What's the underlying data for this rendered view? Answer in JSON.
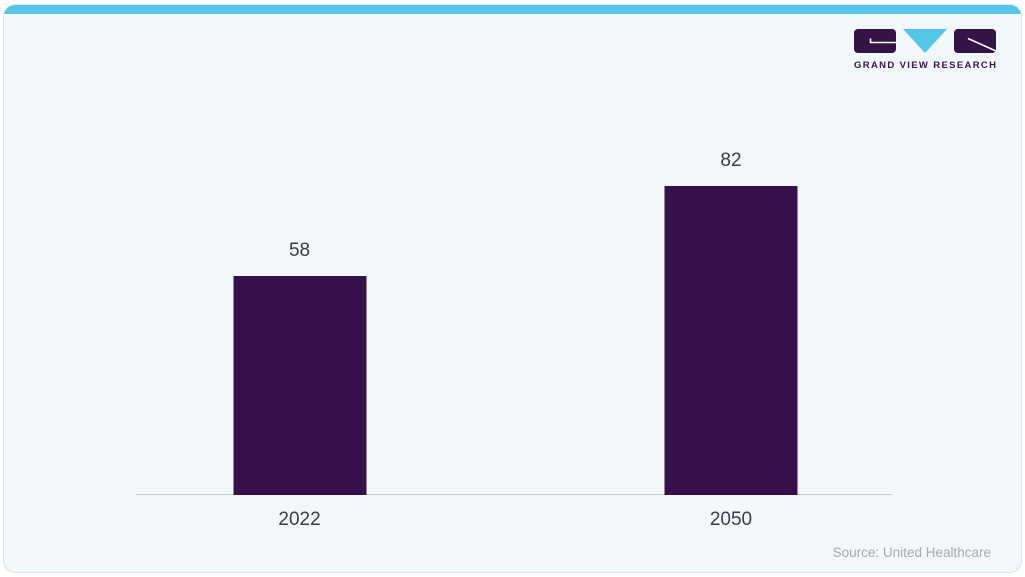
{
  "logo": {
    "text": "GRAND VIEW RESEARCH",
    "icon_parts": [
      "gvr-g-block",
      "gvr-v-triangle",
      "gvr-r-block"
    ],
    "colors": {
      "purple": "#361346",
      "cyan": "#56c5ea"
    }
  },
  "chart_data": {
    "type": "bar",
    "categories": [
      "2022",
      "2050"
    ],
    "values": [
      58,
      82
    ],
    "value_labels": [
      "58",
      "82"
    ],
    "title": "",
    "xlabel": "",
    "ylabel": "",
    "ylim": [
      0,
      90
    ],
    "grid": false,
    "legend": false,
    "bar_color": "#36104a",
    "axis_line_color": "#c7cacf",
    "label_color": "#403a47"
  },
  "source": {
    "text": "Source: United Healthcare"
  },
  "colors": {
    "card_background": "#f2f7fa",
    "accent_stripe": "#56c5ea",
    "card_border": "#dde4ea",
    "source_text": "#a6abb0"
  }
}
